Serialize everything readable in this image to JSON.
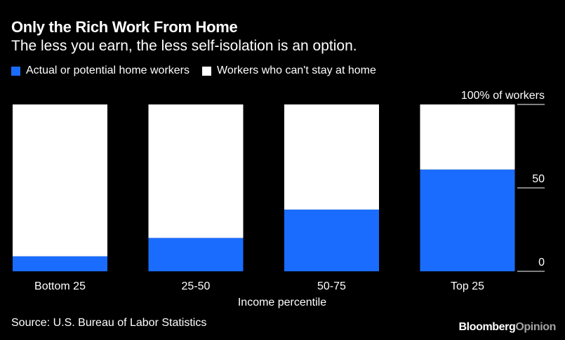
{
  "header": {
    "title": "Only the Rich Work From Home",
    "subtitle": "The less you earn, the less self-isolation is an option."
  },
  "legend": [
    {
      "label": "Actual or potential home workers",
      "color": "#1a6cff"
    },
    {
      "label": "Workers who can't stay at home",
      "color": "#ffffff"
    }
  ],
  "footer": {
    "source": "Source: U.S. Bureau of Labor Statistics",
    "brand_part1": "Bloomberg",
    "brand_part2": "Opinion"
  },
  "chart_data": {
    "type": "bar",
    "stacked": true,
    "categories": [
      "Bottom 25",
      "25-50",
      "50-75",
      "Top 25"
    ],
    "series": [
      {
        "name": "Actual or potential home workers",
        "color": "#1a6cff",
        "values": [
          9,
          20,
          37,
          61
        ]
      },
      {
        "name": "Workers who can't stay at home",
        "color": "#ffffff",
        "values": [
          91,
          80,
          63,
          39
        ]
      }
    ],
    "xlabel": "Income percentile",
    "ylabel": "",
    "ylim": [
      0,
      100
    ],
    "yticks": [
      {
        "value": 0,
        "label": "0"
      },
      {
        "value": 50,
        "label": "50"
      },
      {
        "value": 100,
        "label": "100% of workers"
      }
    ],
    "grid": false,
    "legend_position": "top-left"
  }
}
